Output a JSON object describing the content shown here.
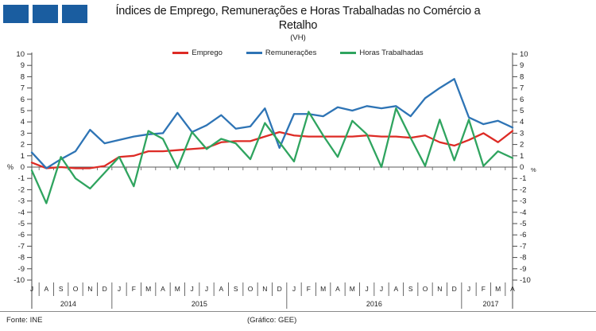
{
  "header": {
    "title_line1": "Índices de Emprego, Remunerações e Horas Trabalhadas no Comércio a",
    "title_line2": "Retalho",
    "subtitle": "(VH)"
  },
  "footer": {
    "source": "Fonte: INE",
    "credit": "(Gráfico: GEE)"
  },
  "colors": {
    "logo_blue": "#1a5da0",
    "axis": "#4a4a4a",
    "emprego": "#dd2b25",
    "remuneracoes": "#2e74b5",
    "horas": "#2fa45f"
  },
  "chart_data": {
    "type": "line",
    "title": "Índices de Emprego, Remunerações e Horas Trabalhadas no Comércio a Retalho",
    "subtitle": "(VH)",
    "ylabel_left": "%",
    "ylabel_right": "%",
    "ylim": [
      -10,
      10
    ],
    "ytick_step": 1,
    "grid": false,
    "legend_position": "top",
    "x_months": [
      "J",
      "A",
      "S",
      "O",
      "N",
      "D",
      "J",
      "F",
      "M",
      "A",
      "M",
      "J",
      "J",
      "A",
      "S",
      "O",
      "N",
      "D",
      "J",
      "F",
      "M",
      "A",
      "M",
      "J",
      "J",
      "A",
      "S",
      "O",
      "N",
      "D",
      "J",
      "F",
      "M",
      "A"
    ],
    "x_years": [
      {
        "label": "2014",
        "from": 0,
        "to": 5
      },
      {
        "label": "2015",
        "from": 6,
        "to": 17
      },
      {
        "label": "2016",
        "from": 18,
        "to": 29
      },
      {
        "label": "2017",
        "from": 30,
        "to": 33
      }
    ],
    "series": [
      {
        "name": "Emprego",
        "color": "#dd2b25",
        "values": [
          0.4,
          -0.1,
          0.0,
          -0.1,
          -0.1,
          0.1,
          0.9,
          1.0,
          1.4,
          1.4,
          1.5,
          1.6,
          1.7,
          2.2,
          2.3,
          2.3,
          2.7,
          3.1,
          2.8,
          2.7,
          2.7,
          2.7,
          2.7,
          2.8,
          2.7,
          2.7,
          2.6,
          2.8,
          2.2,
          1.9,
          2.4,
          3.0,
          2.2,
          3.2
        ]
      },
      {
        "name": "Remunerações",
        "color": "#2e74b5",
        "values": [
          1.3,
          -0.1,
          0.7,
          1.4,
          3.3,
          2.1,
          2.4,
          2.7,
          2.9,
          3.0,
          4.8,
          3.1,
          3.7,
          4.6,
          3.4,
          3.6,
          5.2,
          1.7,
          4.7,
          4.7,
          4.5,
          5.3,
          5.0,
          5.4,
          5.2,
          5.4,
          4.5,
          6.1,
          7.0,
          7.8,
          4.4,
          3.8,
          4.1,
          3.5
        ]
      },
      {
        "name": "Horas Trabalhadas",
        "color": "#2fa45f",
        "values": [
          -0.3,
          -3.2,
          0.9,
          -1.0,
          -1.9,
          -0.5,
          0.9,
          -1.7,
          3.2,
          2.5,
          -0.1,
          3.1,
          1.6,
          2.5,
          2.1,
          0.7,
          3.9,
          2.2,
          0.5,
          4.9,
          2.8,
          0.9,
          4.1,
          2.9,
          0.0,
          5.2,
          2.6,
          0.1,
          4.2,
          0.6,
          4.2,
          0.1,
          1.4,
          0.8
        ]
      }
    ]
  }
}
